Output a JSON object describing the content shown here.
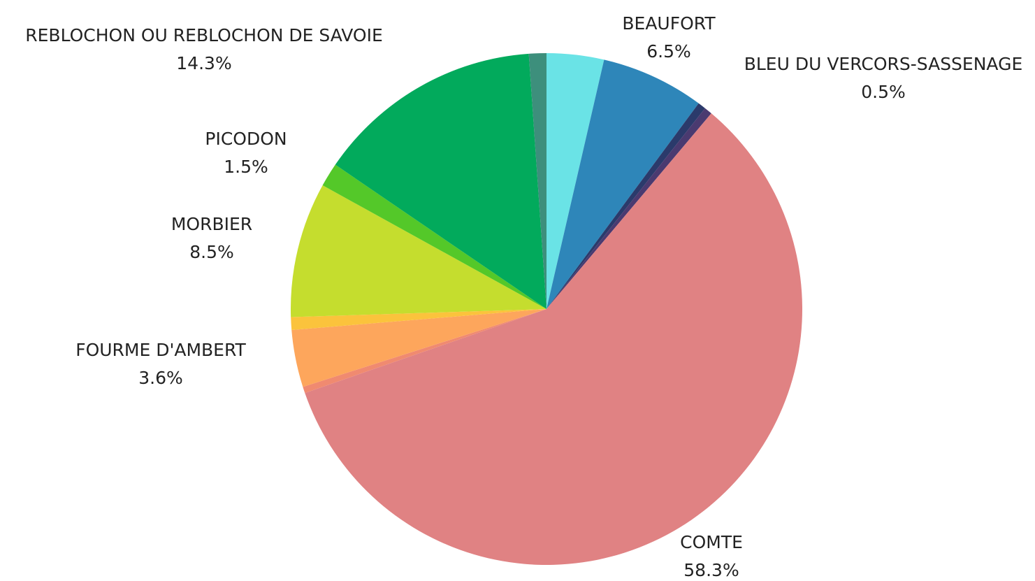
{
  "chart_data": {
    "type": "pie",
    "categories": [
      null,
      "BEAUFORT",
      "BLEU DU VERCORS-SASSENAGE",
      null,
      "COMTE",
      null,
      "FOURME D'AMBERT",
      null,
      "MORBIER",
      "PICODON",
      "REBLOCHON OU REBLOCHON DE SAVOIE",
      null
    ],
    "values": [
      3.6,
      6.5,
      0.5,
      0.5,
      58.3,
      0.4,
      3.6,
      0.8,
      8.5,
      1.5,
      14.3,
      1.1
    ],
    "value_labels": [
      null,
      "6.5%",
      "0.5%",
      null,
      "58.3%",
      null,
      "3.6%",
      null,
      "8.5%",
      "1.5%",
      "14.3%",
      null
    ],
    "colors": [
      "#6ae3e6",
      "#2e86b9",
      "#2b3a6b",
      "#4a3a70",
      "#e08283",
      "#f08a70",
      "#fda65c",
      "#fbc33c",
      "#c5dd2e",
      "#54c829",
      "#02aa5c",
      "#3d8f7c"
    ]
  }
}
